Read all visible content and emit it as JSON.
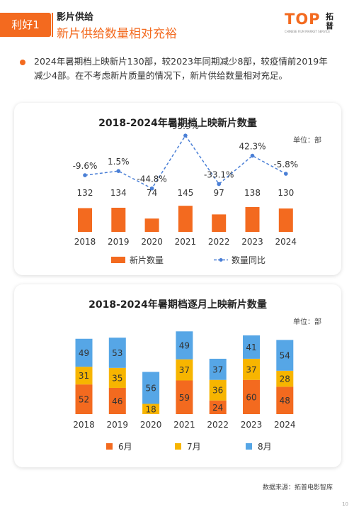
{
  "header": {
    "tag": "利好1",
    "subtitle": "影片供给",
    "title": "新片供给数量相对充裕"
  },
  "logo": {
    "text": "TOP",
    "cn": "拓普",
    "en": "CHINESE FILM MARKET SERVICE"
  },
  "bullet": "2024年暑期档上映新片130部，较2023年同期减少8部，较疫情前2019年减少4部。在不考虑新片质量的情况下，新片供给数量相对充足。",
  "chart_data": [
    {
      "type": "bar",
      "title": "2018-2024年暑期档上映新片数量",
      "unit": "单位：部",
      "categories": [
        "2018",
        "2019",
        "2020",
        "2021",
        "2022",
        "2023",
        "2024"
      ],
      "series": [
        {
          "name": "新片数量",
          "type": "bar",
          "color": "#f36a1f",
          "values": [
            132,
            134,
            74,
            145,
            97,
            138,
            130
          ]
        },
        {
          "name": "数量同比",
          "type": "line",
          "color": "#4a7fd6",
          "values": [
            -9.6,
            1.5,
            -44.8,
            95.9,
            -33.1,
            42.3,
            -5.8
          ],
          "labels": [
            "-9.6%",
            "1.5%",
            "-44.8%",
            "95.9%",
            "-33.1%",
            "42.3%",
            "-5.8%"
          ]
        }
      ],
      "legend": "bottom"
    },
    {
      "type": "bar",
      "stacked": true,
      "title": "2018-2024年暑期档逐月上映新片数量",
      "unit": "单位：部",
      "categories": [
        "2018",
        "2019",
        "2020",
        "2021",
        "2022",
        "2023",
        "2024"
      ],
      "series": [
        {
          "name": "6月",
          "color": "#f36a1f",
          "values": [
            52,
            46,
            null,
            59,
            24,
            60,
            48
          ]
        },
        {
          "name": "7月",
          "color": "#f7b500",
          "values": [
            31,
            35,
            18,
            37,
            36,
            37,
            28
          ]
        },
        {
          "name": "8月",
          "color": "#56a6e6",
          "values": [
            49,
            53,
            56,
            49,
            37,
            41,
            54
          ]
        }
      ],
      "legend": "bottom"
    }
  ],
  "footer": {
    "source": "数据来源：拓普电影智库",
    "page": "10"
  }
}
